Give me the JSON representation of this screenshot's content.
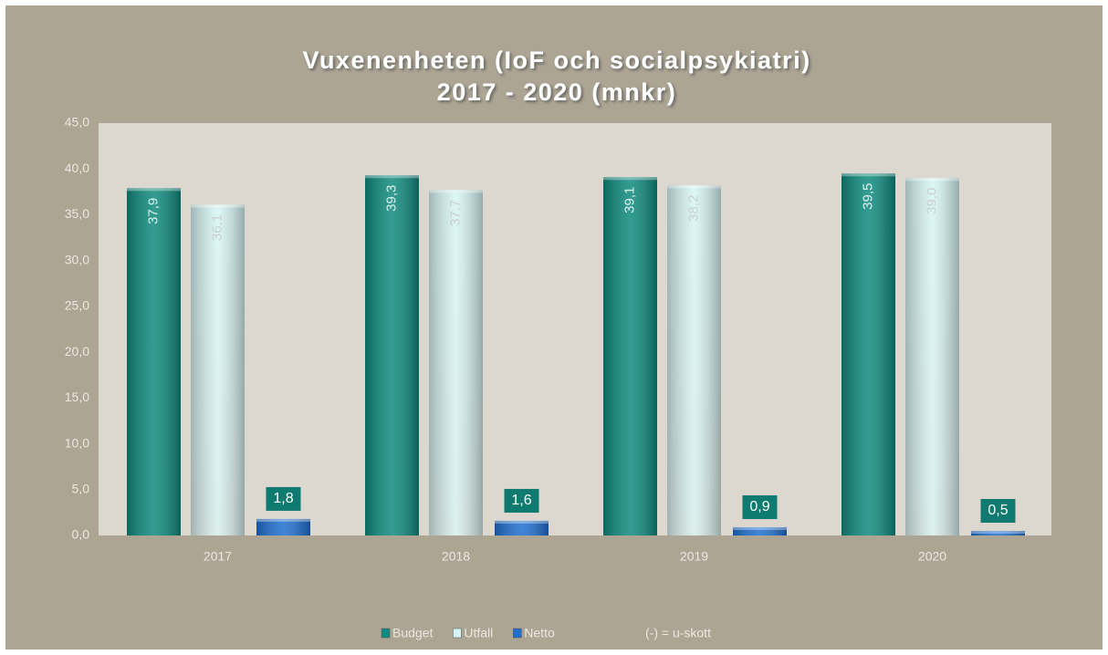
{
  "chart_data": {
    "type": "bar",
    "title": [
      "Vuxenenheten  (IoF och socialpsykiatri)",
      "2017 - 2020 (mnkr)"
    ],
    "categories": [
      "2017",
      "2018",
      "2019",
      "2020"
    ],
    "series": [
      {
        "name": "Budget",
        "color": "#0f8a7e",
        "values": [
          37.9,
          39.3,
          39.1,
          39.5
        ],
        "value_labels": [
          "37,9",
          "39,3",
          "39,1",
          "39,5"
        ]
      },
      {
        "name": "Utfall",
        "color": "#d6f4f4",
        "values": [
          36.1,
          37.7,
          38.2,
          39.0
        ],
        "value_labels": [
          "36,1",
          "37,7",
          "38,2",
          "39,0"
        ]
      },
      {
        "name": "Netto",
        "color": "#1f6fd0",
        "values": [
          1.8,
          1.6,
          0.9,
          0.5
        ],
        "value_labels": [
          "1,8",
          "1,6",
          "0,9",
          "0,5"
        ]
      }
    ],
    "annotation": "(-) = u-skott",
    "ylim": [
      0,
      45
    ],
    "yticks": [
      {
        "value": 0,
        "label": "0,0"
      },
      {
        "value": 5,
        "label": "5,0"
      },
      {
        "value": 10,
        "label": "10,0"
      },
      {
        "value": 15,
        "label": "15,0"
      },
      {
        "value": 20,
        "label": "20,0"
      },
      {
        "value": 25,
        "label": "25,0"
      },
      {
        "value": 30,
        "label": "30,0"
      },
      {
        "value": 35,
        "label": "35,0"
      },
      {
        "value": 40,
        "label": "40,0"
      },
      {
        "value": 45,
        "label": "45,0"
      }
    ],
    "legend": "bottom"
  }
}
